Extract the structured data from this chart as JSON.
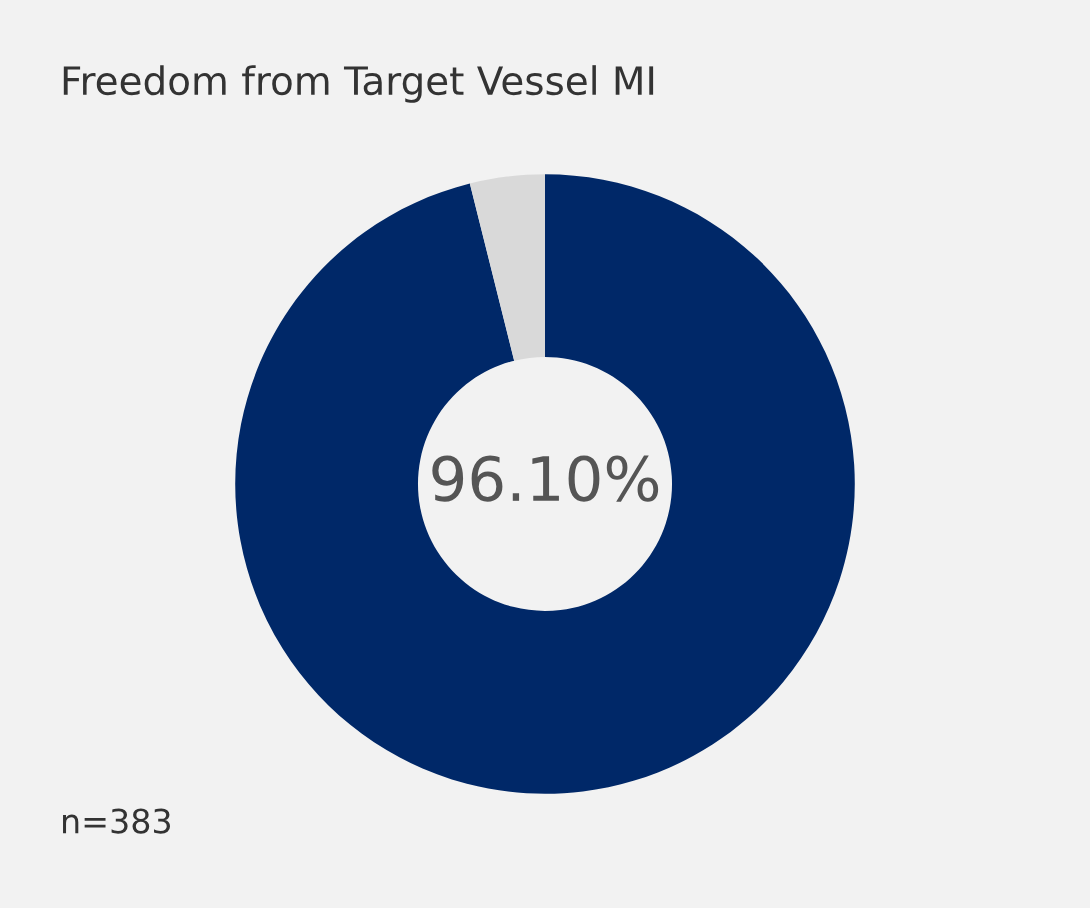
{
  "chart_data": {
    "type": "donut",
    "title": "Freedom from Target Vessel MI",
    "categories": [
      null,
      null
    ],
    "values": [
      96.1,
      3.9
    ],
    "colors": [
      "#002868",
      "#d9d9d9"
    ],
    "value_labels": [
      "96.10%",
      null
    ],
    "annotations": [
      "n=383"
    ],
    "legend": false
  }
}
